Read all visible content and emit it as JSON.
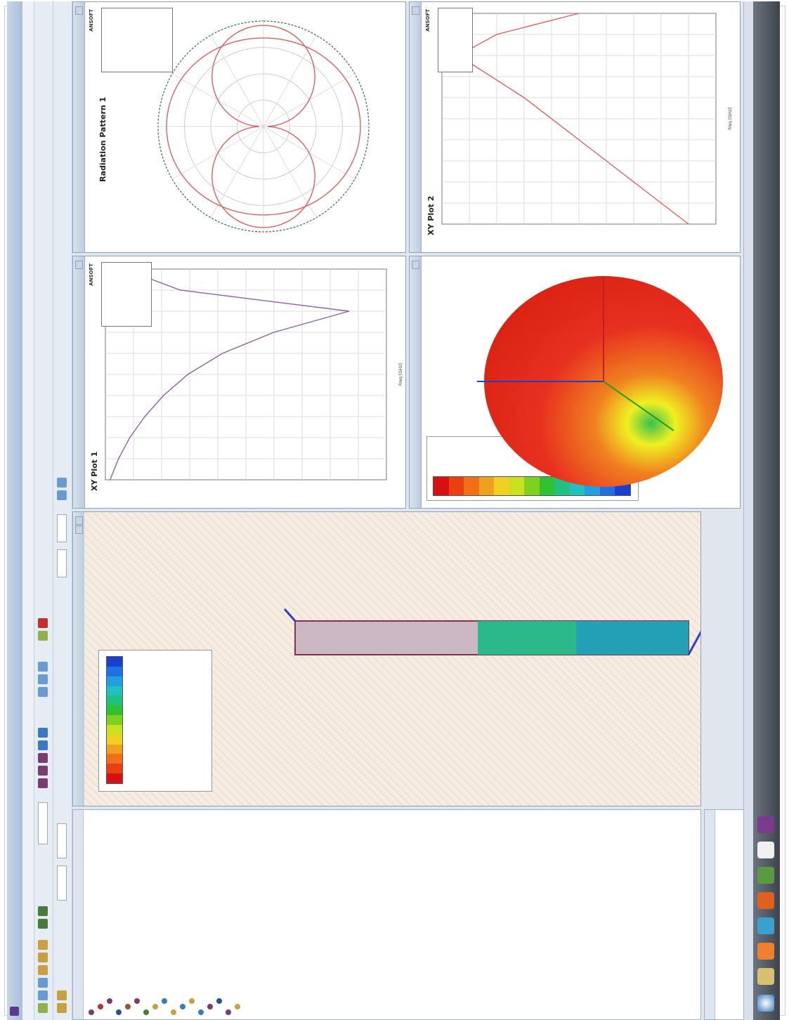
{
  "app": {
    "title": "",
    "menu": []
  },
  "toolbar": {
    "zoom_value": ""
  },
  "project_manager": {
    "items": [
      {
        "label": "",
        "color": "#7a3b6e"
      },
      {
        "label": "",
        "color": "#c23030"
      },
      {
        "label": "",
        "color": "#7a3b6e"
      },
      {
        "label": "",
        "color": "#2b4d9a"
      },
      {
        "label": "",
        "color": "#a05030"
      },
      {
        "label": "",
        "color": "#7a3b6e"
      },
      {
        "label": "",
        "color": "#4a7a3a"
      },
      {
        "label": "",
        "color": "#c9a040"
      },
      {
        "label": "",
        "color": "#3a7ac0"
      },
      {
        "label": "",
        "color": "#c9a040"
      },
      {
        "label": "",
        "color": "#3a7ac0"
      },
      {
        "label": "",
        "color": "#c9a040"
      },
      {
        "label": "",
        "color": "#3a7ac0"
      },
      {
        "label": "",
        "color": "#7a3b6e"
      },
      {
        "label": "",
        "color": "#2b4d9a"
      },
      {
        "label": "",
        "color": "#7a3b6e"
      },
      {
        "label": "",
        "color": "#c9a040"
      }
    ]
  },
  "windows": {
    "model": {
      "title": ""
    },
    "s_param": {
      "title": "",
      "chart_title": "XY Plot 1",
      "brand": "ANSOFT"
    },
    "radiation": {
      "title": "",
      "chart_title": "Radiation Pattern 1",
      "brand": "ANSOFT"
    },
    "field_3d": {
      "title": ""
    },
    "vswr": {
      "title": "",
      "chart_title": "XY Plot 2",
      "brand": "ANSOFT"
    }
  },
  "colors": {
    "pattern_curve": "#e06060",
    "s_curve": "#9060a0",
    "accent": "#e83020"
  },
  "chart_data": [
    {
      "type": "line",
      "title": "XY Plot 1",
      "xlabel": "Freq [GHz]",
      "ylabel": "",
      "series": [
        {
          "values": [
            [
              2.0,
              -0.5
            ],
            [
              2.05,
              -1.4
            ],
            [
              2.1,
              -2.6
            ],
            [
              2.15,
              -4.2
            ],
            [
              2.2,
              -6.2
            ],
            [
              2.25,
              -8.8
            ],
            [
              2.3,
              -12.5
            ],
            [
              2.35,
              -18.0
            ],
            [
              2.4,
              -26.0
            ],
            [
              2.45,
              -8.0
            ],
            [
              2.5,
              -2.0
            ]
          ]
        }
      ]
    },
    {
      "type": "line",
      "title": "Radiation Pattern 1",
      "xlabel": "",
      "ylabel": "",
      "series": []
    },
    {
      "type": "line",
      "title": "XY Plot 2",
      "xlabel": "Freq [GHz]",
      "ylabel": "",
      "series": [
        {
          "values": [
            [
              2.0,
              18
            ],
            [
              2.1,
              14
            ],
            [
              2.2,
              10
            ],
            [
              2.3,
              6
            ],
            [
              2.4,
              1.2
            ],
            [
              2.45,
              4
            ],
            [
              2.5,
              10
            ]
          ]
        }
      ]
    }
  ]
}
